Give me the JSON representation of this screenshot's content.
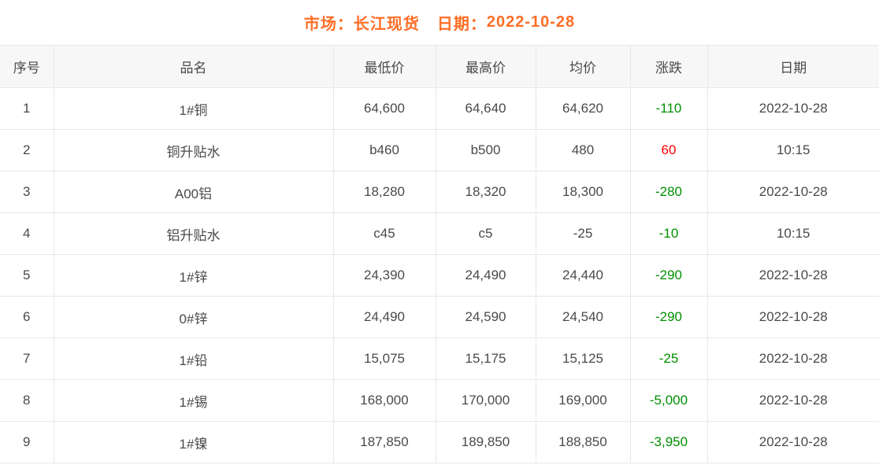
{
  "page": {
    "title": {
      "market_label": "市场：",
      "market_value": "长江现货",
      "date_label": "日期：",
      "date_value": "2022-10-28"
    }
  },
  "colors": {
    "title_orange": "#ff6e26",
    "down_green": "#008f00",
    "up_red": "#fb0000",
    "header_bg": "#f7f7f7",
    "border": "#e8e8e8",
    "text": "#4a4a4d"
  },
  "table": {
    "columns": [
      {
        "key": "seq",
        "label": "序号"
      },
      {
        "key": "product",
        "label": "品名"
      },
      {
        "key": "low",
        "label": "最低价"
      },
      {
        "key": "high",
        "label": "最高价"
      },
      {
        "key": "avg",
        "label": "均价"
      },
      {
        "key": "change",
        "label": "涨跌"
      },
      {
        "key": "date",
        "label": "日期"
      }
    ],
    "rows": [
      {
        "seq": "1",
        "product": "1#铜",
        "low": "64,600",
        "high": "64,640",
        "avg": "64,620",
        "change": "-110",
        "change_direction": "down",
        "date": "2022-10-28"
      },
      {
        "seq": "2",
        "product": "铜升贴水",
        "low": "b460",
        "high": "b500",
        "avg": "480",
        "change": "60",
        "change_direction": "up",
        "date": "10:15"
      },
      {
        "seq": "3",
        "product": "A00铝",
        "low": "18,280",
        "high": "18,320",
        "avg": "18,300",
        "change": "-280",
        "change_direction": "down",
        "date": "2022-10-28"
      },
      {
        "seq": "4",
        "product": "铝升贴水",
        "low": "c45",
        "high": "c5",
        "avg": "-25",
        "change": "-10",
        "change_direction": "down",
        "date": "10:15"
      },
      {
        "seq": "5",
        "product": "1#锌",
        "low": "24,390",
        "high": "24,490",
        "avg": "24,440",
        "change": "-290",
        "change_direction": "down",
        "date": "2022-10-28"
      },
      {
        "seq": "6",
        "product": "0#锌",
        "low": "24,490",
        "high": "24,590",
        "avg": "24,540",
        "change": "-290",
        "change_direction": "down",
        "date": "2022-10-28"
      },
      {
        "seq": "7",
        "product": "1#铅",
        "low": "15,075",
        "high": "15,175",
        "avg": "15,125",
        "change": "-25",
        "change_direction": "down",
        "date": "2022-10-28"
      },
      {
        "seq": "8",
        "product": "1#锡",
        "low": "168,000",
        "high": "170,000",
        "avg": "169,000",
        "change": "-5,000",
        "change_direction": "down",
        "date": "2022-10-28"
      },
      {
        "seq": "9",
        "product": "1#镍",
        "low": "187,850",
        "high": "189,850",
        "avg": "188,850",
        "change": "-3,950",
        "change_direction": "down",
        "date": "2022-10-28"
      }
    ]
  }
}
